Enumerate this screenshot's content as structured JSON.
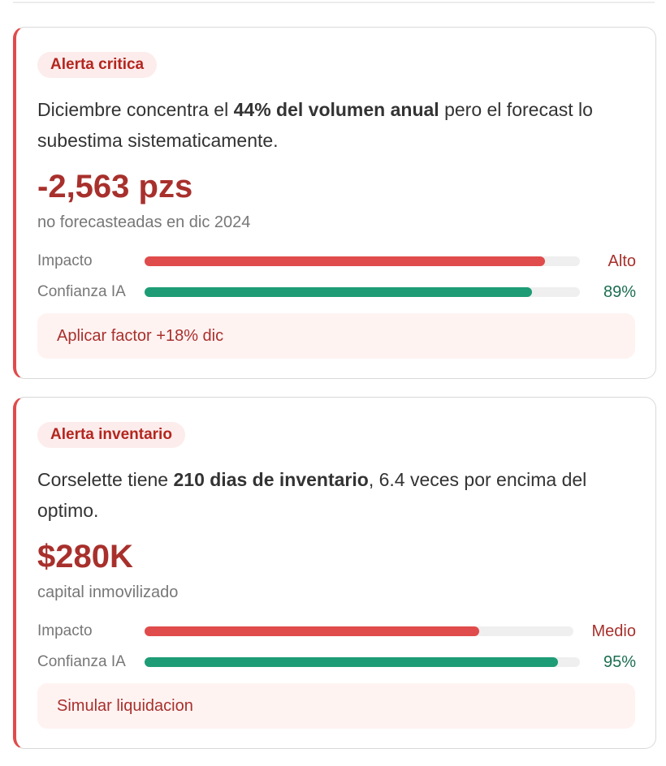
{
  "alerts": [
    {
      "badge": "Alerta critica",
      "message_parts": [
        "Diciembre concentra el ",
        "44% del volumen anual",
        " pero el forecast lo subestima sistematicamente."
      ],
      "big_value": "-2,563 pzs",
      "subtext": "no forecasteadas en dic 2024",
      "metrics": [
        {
          "label": "Impacto",
          "value": "Alto",
          "fill_fraction": 0.92,
          "color": "#e04b4b"
        },
        {
          "label": "Confianza IA",
          "value": "89%",
          "fill_fraction": 0.89,
          "color": "#1e9c75"
        }
      ],
      "action_label": "Aplicar factor +18% dic"
    },
    {
      "badge": "Alerta inventario",
      "message_parts": [
        "Corselette tiene ",
        "210 dias de inventario",
        ", 6.4 veces por encima del optimo."
      ],
      "big_value": "$280K",
      "subtext": "capital inmovilizado",
      "metrics": [
        {
          "label": "Impacto",
          "value": "Medio",
          "fill_fraction": 0.78,
          "color": "#e04b4b"
        },
        {
          "label": "Confianza IA",
          "value": "95%",
          "fill_fraction": 0.95,
          "color": "#1e9c75"
        }
      ],
      "action_label": "Simular liquidacion"
    }
  ],
  "colors": {
    "accent_red": "#e04b4b",
    "text_red": "#a8302c",
    "accent_green": "#1e9c75"
  }
}
